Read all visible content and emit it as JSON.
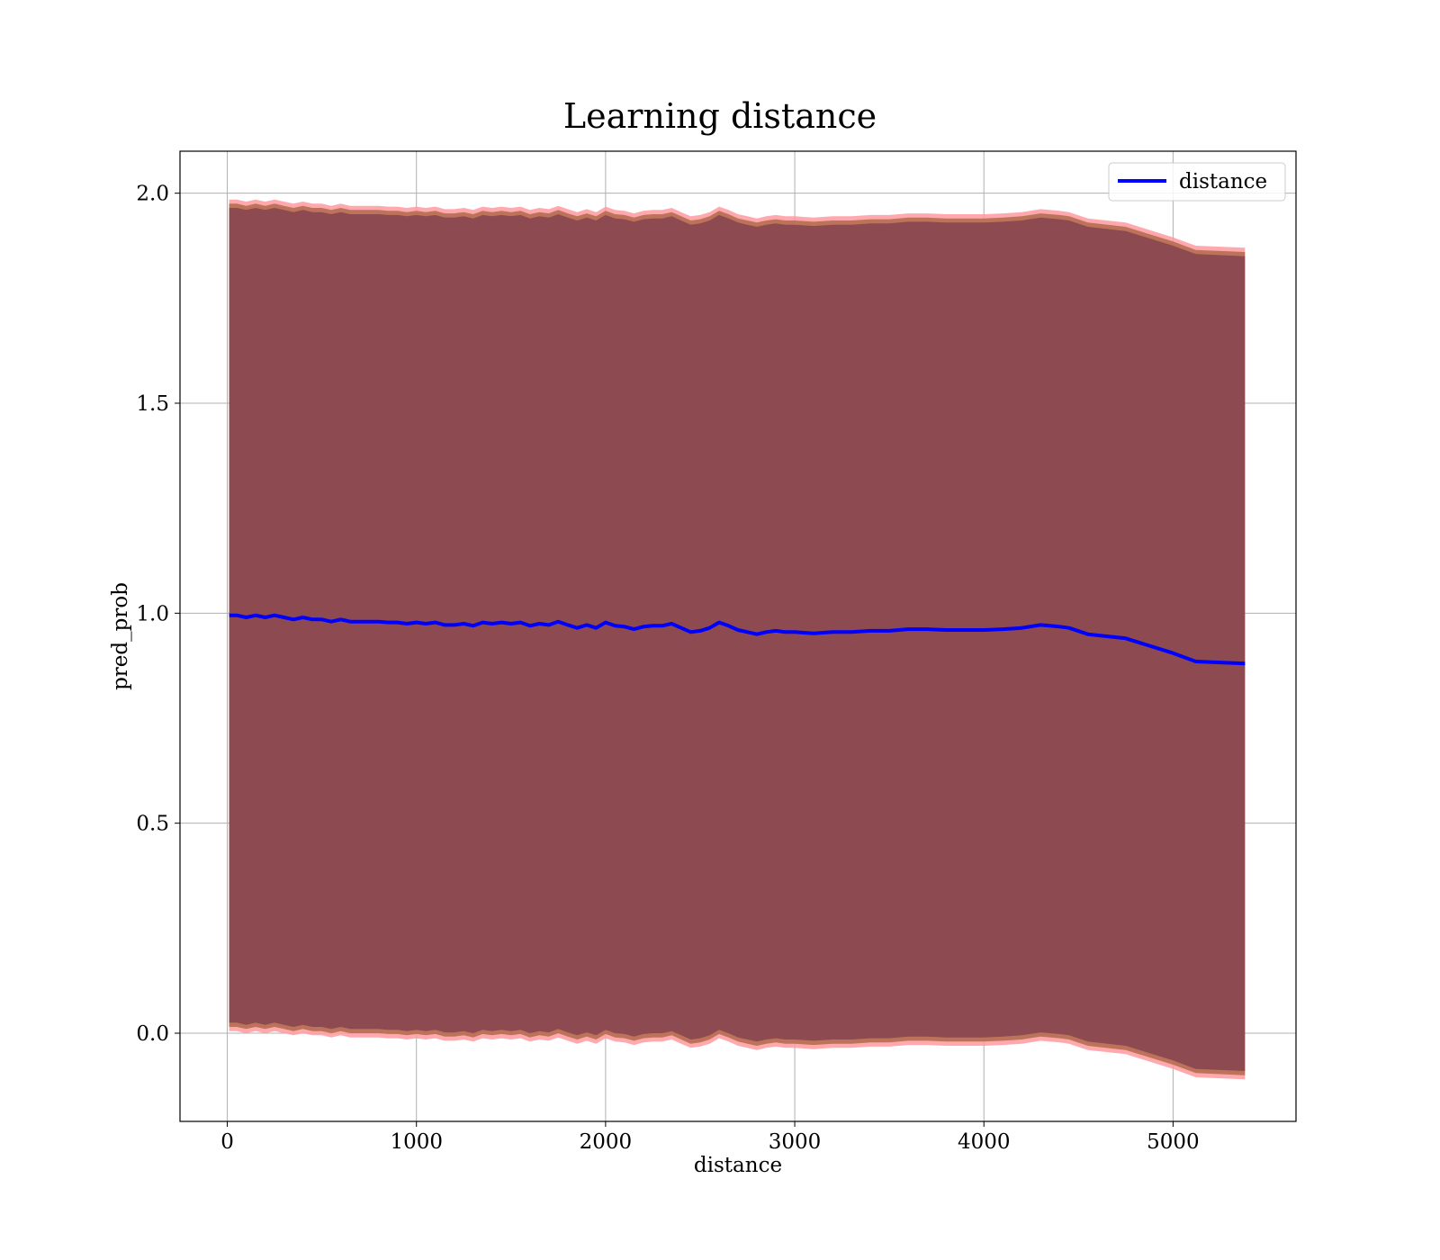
{
  "chart_data": {
    "type": "line",
    "title": "Learning distance",
    "xlabel": "distance",
    "ylabel": "pred_prob",
    "xlim": [
      -250,
      5650
    ],
    "ylim": [
      -0.21,
      2.1
    ],
    "xticks": [
      0,
      1000,
      2000,
      3000,
      4000,
      5000
    ],
    "yticks": [
      0.0,
      0.5,
      1.0,
      1.5,
      2.0
    ],
    "xtick_labels": [
      "0",
      "1000",
      "2000",
      "3000",
      "4000",
      "5000"
    ],
    "ytick_labels": [
      "0.0",
      "0.5",
      "1.0",
      "1.5",
      "2.0"
    ],
    "grid": true,
    "legend": {
      "position": "top-right",
      "entries": [
        "distance"
      ]
    },
    "colors": {
      "line": "#0000ff",
      "band_inner": "#7b3a4c",
      "band_mid": "#b06a4a",
      "band_outer": "#ff9aa0"
    },
    "x": [
      10,
      50,
      100,
      150,
      200,
      250,
      300,
      350,
      400,
      450,
      500,
      550,
      600,
      650,
      700,
      750,
      800,
      850,
      900,
      950,
      1000,
      1050,
      1100,
      1150,
      1200,
      1250,
      1300,
      1350,
      1400,
      1450,
      1500,
      1550,
      1600,
      1650,
      1700,
      1750,
      1800,
      1850,
      1900,
      1950,
      2000,
      2050,
      2100,
      2150,
      2200,
      2250,
      2300,
      2350,
      2400,
      2450,
      2500,
      2550,
      2600,
      2650,
      2700,
      2750,
      2800,
      2850,
      2900,
      2950,
      3000,
      3100,
      3200,
      3300,
      3400,
      3500,
      3600,
      3700,
      3800,
      3900,
      4000,
      4100,
      4200,
      4300,
      4400,
      4450,
      4550,
      4750,
      5000,
      5120,
      5380
    ],
    "series": [
      {
        "name": "distance",
        "values": [
          0.995,
          0.995,
          0.99,
          0.995,
          0.99,
          0.995,
          0.99,
          0.985,
          0.99,
          0.985,
          0.985,
          0.98,
          0.985,
          0.98,
          0.98,
          0.98,
          0.98,
          0.978,
          0.978,
          0.975,
          0.978,
          0.975,
          0.978,
          0.972,
          0.972,
          0.975,
          0.97,
          0.978,
          0.975,
          0.978,
          0.975,
          0.978,
          0.97,
          0.975,
          0.972,
          0.98,
          0.972,
          0.965,
          0.972,
          0.965,
          0.978,
          0.97,
          0.968,
          0.962,
          0.968,
          0.97,
          0.97,
          0.975,
          0.965,
          0.955,
          0.958,
          0.965,
          0.978,
          0.97,
          0.96,
          0.955,
          0.95,
          0.955,
          0.958,
          0.955,
          0.955,
          0.952,
          0.955,
          0.955,
          0.958,
          0.958,
          0.962,
          0.962,
          0.96,
          0.96,
          0.96,
          0.962,
          0.965,
          0.972,
          0.968,
          0.965,
          0.95,
          0.94,
          0.905,
          0.885,
          0.88
        ]
      }
    ]
  }
}
